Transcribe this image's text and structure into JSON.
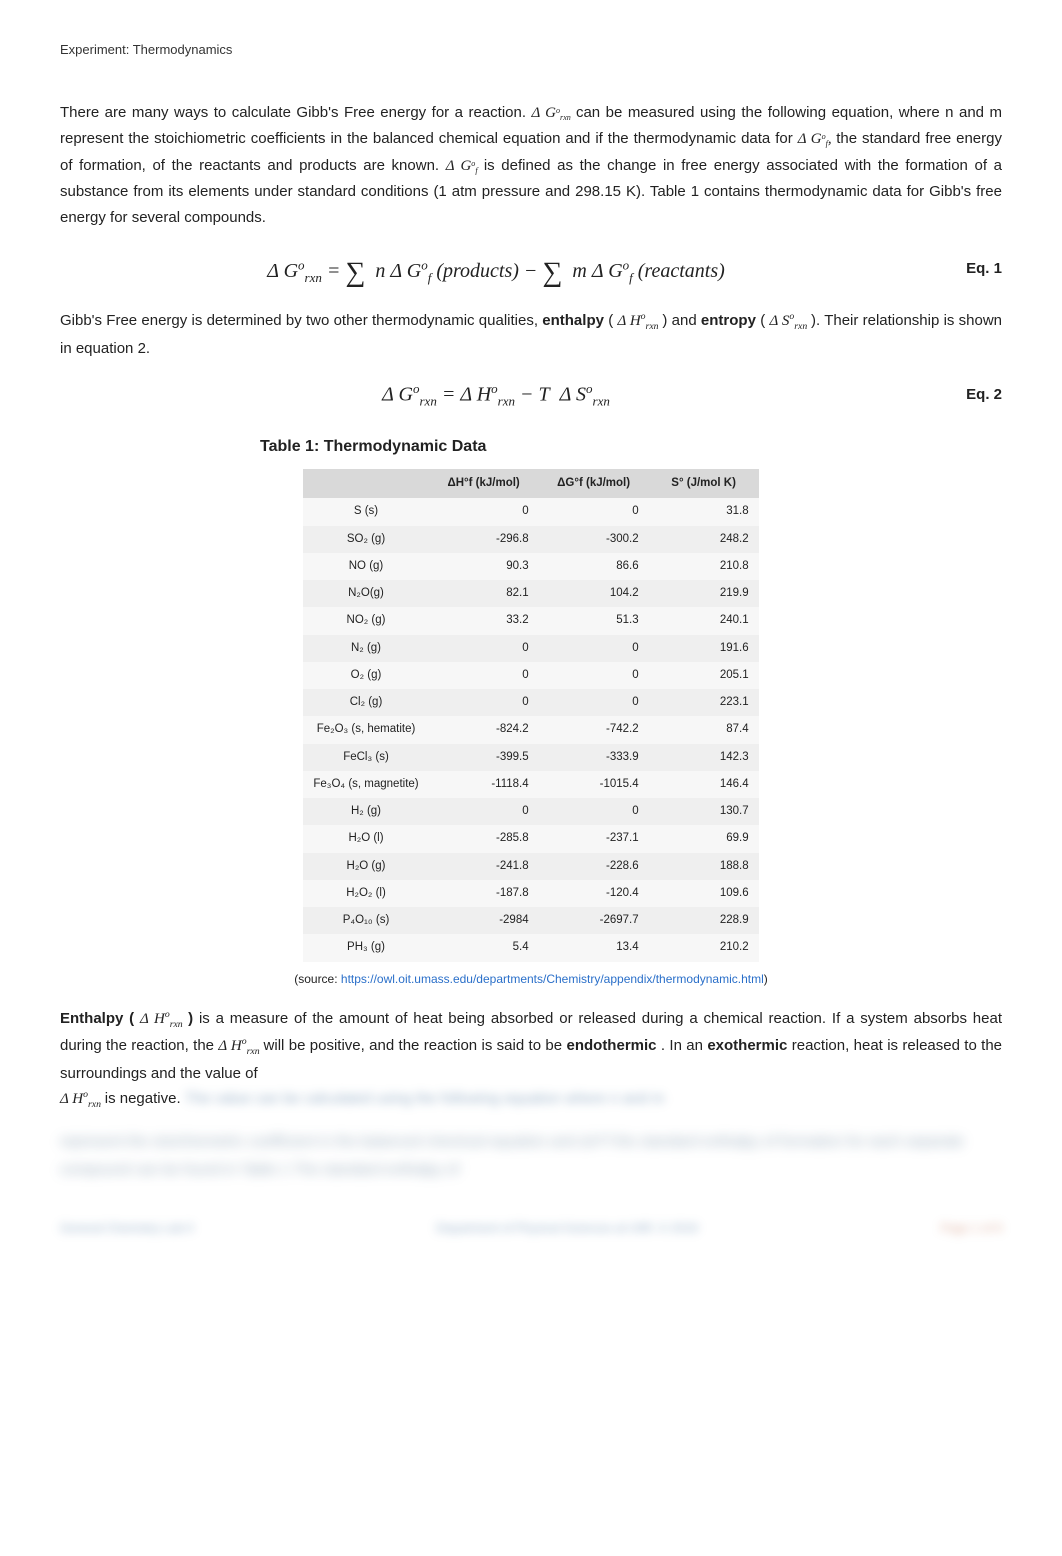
{
  "header": "Experiment: Thermodynamics",
  "para1_a": "There are many ways to calculate Gibb's Free energy for a reaction.   ",
  "para1_b": "   can be measured using the following equation, where n and m represent the stoichiometric coefficients in the balanced chemical equation and if the thermodynamic data for   ",
  "para1_c": "   the standard free energy of formation, of the reactants and products are known.   ",
  "para1_d": "   is defined as the change in free energy associated with the formation of a substance from its elements under standard conditions (1 atm pressure and 298.15 K). Table 1 contains thermodynamic data for Gibb's free energy for several compounds.",
  "eq1_label": "Eq. 1",
  "para2_a": "Gibb's Free energy is determined by two other thermodynamic qualities, ",
  "para2_enthalpy": "enthalpy",
  "para2_b": " (   ",
  "para2_c": "   ) and ",
  "para2_entropy": "entropy",
  "para2_d": " (   ",
  "para2_e": "   ). Their relationship is shown in equation 2.",
  "eq2_label": "Eq. 2",
  "table_title": "Table 1: Thermodynamic Data",
  "table": {
    "headers": [
      "",
      "ΔH°f (kJ/mol)",
      "ΔG°f (kJ/mol)",
      "S° (J/mol K)"
    ],
    "rows": [
      [
        "S (s)",
        "0",
        "0",
        "31.8"
      ],
      [
        "SO₂ (g)",
        "-296.8",
        "-300.2",
        "248.2"
      ],
      [
        "NO (g)",
        "90.3",
        "86.6",
        "210.8"
      ],
      [
        "N₂O(g)",
        "82.1",
        "104.2",
        "219.9"
      ],
      [
        "NO₂ (g)",
        "33.2",
        "51.3",
        "240.1"
      ],
      [
        "N₂ (g)",
        "0",
        "0",
        "191.6"
      ],
      [
        "O₂ (g)",
        "0",
        "0",
        "205.1"
      ],
      [
        "Cl₂ (g)",
        "0",
        "0",
        "223.1"
      ],
      [
        "Fe₂O₃ (s, hematite)",
        "-824.2",
        "-742.2",
        "87.4"
      ],
      [
        "FeCl₃ (s)",
        "-399.5",
        "-333.9",
        "142.3"
      ],
      [
        "Fe₃O₄ (s, magnetite)",
        "-1118.4",
        "-1015.4",
        "146.4"
      ],
      [
        "H₂ (g)",
        "0",
        "0",
        "130.7"
      ],
      [
        "H₂O (l)",
        "-285.8",
        "-237.1",
        "69.9"
      ],
      [
        "H₂O (g)",
        "-241.8",
        "-228.6",
        "188.8"
      ],
      [
        "H₂O₂ (l)",
        "-187.8",
        "-120.4",
        "109.6"
      ],
      [
        "P₄O₁₀ (s)",
        "-2984",
        "-2697.7",
        "228.9"
      ],
      [
        "PH₃ (g)",
        "5.4",
        "13.4",
        "210.2"
      ]
    ]
  },
  "source_prefix": "(source: ",
  "source_link": "https://owl.oit.umass.edu/departments/Chemistry/appendix/thermodynamic.html",
  "source_suffix": ")",
  "para3_prefix": "Enthalpy (   ",
  "para3_a": "   ) ",
  "para3_b": "is a measure of the amount of heat being absorbed or released during a chemical reaction.  If a system absorbs heat during the reaction, the   ",
  "para3_c": "   will be positive, and the reaction is said to be ",
  "para3_endo": "endothermic",
  "para3_d": ".  In an ",
  "para3_exo": "exothermic",
  "para3_e": " reaction, heat is released to the surroundings and the value of   ",
  "para3_f": "   is negative.",
  "blur_tail1": "  The  value      can be calculated using the following equation  where n  and m",
  "blurline": "represent the stoichiometric coefficient in the balanced chemical equation and   ΔH°f     the standard enthalpy of formation  for each separate compound  can be found in Table 1   The standard enthalpy of",
  "footer": {
    "left": "General Chemistry Lab II",
    "mid": "Department of Physical Sciences at UNF, © 2019",
    "right": "Page 1 of 9"
  },
  "sym": {
    "dGrxn": "Δ G",
    "dGrxn_sub": "rxn",
    "dGrxn_sup": "o",
    "dGf": "Δ G",
    "dGf_sub": "f",
    "dGf_sup": "o",
    "dGf_comma": ",",
    "dHrxn": "Δ H",
    "dHrxn_sub": "rxn",
    "dHrxn_sup": "o",
    "dSrxn": "Δ S",
    "dSrxn_sub": "rxn",
    "dSrxn_sup": "o",
    "products": "(products)",
    "reactants": "(reactants)",
    "minus": "−",
    "equals": "=",
    "n": "n",
    "m": "m",
    "T": "T"
  }
}
